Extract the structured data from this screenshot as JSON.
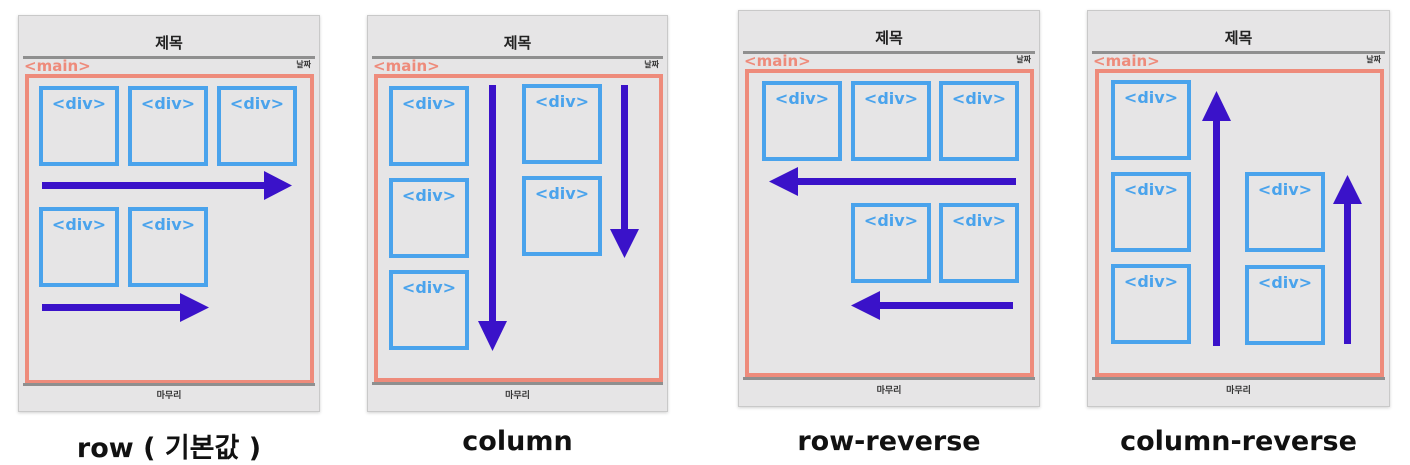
{
  "diagram": {
    "title_text": "제목",
    "main_tag": "<main>",
    "date_text": "날짜",
    "footer_text": "마무리",
    "div_tag": "<div>",
    "colors": {
      "main_border": "#ee8b7b",
      "div_border": "#4aa3ec",
      "arrow": "#3a12c9",
      "panel_bg": "#e6e5e6"
    },
    "panels": [
      {
        "caption": "row ( 기본값 )",
        "direction": "row",
        "div_count": 5
      },
      {
        "caption": "column",
        "direction": "column",
        "div_count": 5
      },
      {
        "caption": "row-reverse",
        "direction": "row-reverse",
        "div_count": 5
      },
      {
        "caption": "column-reverse",
        "direction": "column-reverse",
        "div_count": 5
      }
    ]
  }
}
